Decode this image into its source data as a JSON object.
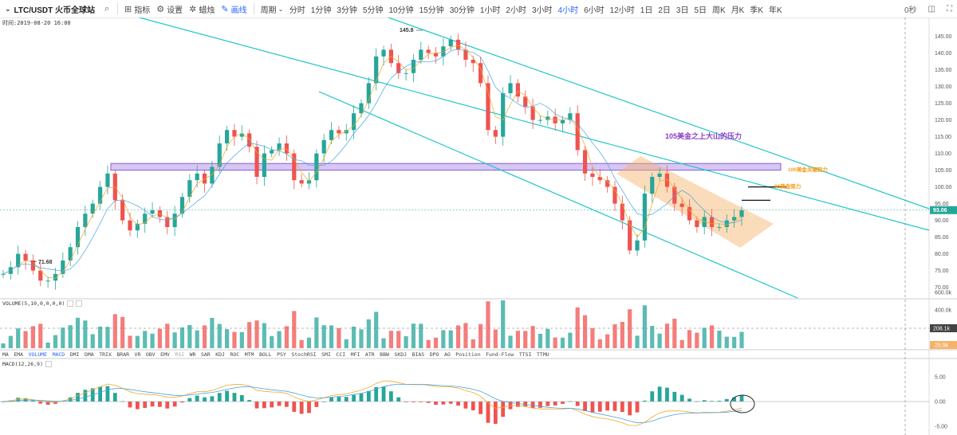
{
  "toolbar": {
    "symbol": "LTC/USDT 火币全球站",
    "indicators_label": "指标",
    "settings_label": "设置",
    "candle_label": "蜡烛",
    "draw_label": "画线",
    "period_label": "周期",
    "intervals": [
      "分时",
      "1分钟",
      "3分钟",
      "5分钟",
      "10分钟",
      "15分钟",
      "30分钟",
      "1小时",
      "2小时",
      "3小时",
      "4小时",
      "6小时",
      "12小时",
      "1日",
      "2日",
      "3日",
      "5日",
      "周K",
      "月K",
      "季K",
      "年K"
    ],
    "active_interval": "4小时",
    "right_zoom": "0秒"
  },
  "time_info": "时间:2019-08-20 16:00",
  "annotations": {
    "resistance_105": "105美金之上大山的压力",
    "resistance_100": "100美金关键阻力",
    "resistance_96": "96美金阻力",
    "high_label": "145.8",
    "low_label": "71.68"
  },
  "price_axis": {
    "ticks": [
      "145.00",
      "140.00",
      "135.00",
      "130.00",
      "125.00",
      "120.00",
      "115.00",
      "110.00",
      "105.00",
      "100.00",
      "95.00",
      "90.00",
      "85.00",
      "80.00",
      "75.00",
      "70.00"
    ],
    "current_price": "93.06"
  },
  "volume": {
    "label": "VOLUME(5,10,0,0,0,0)",
    "ticks": [
      "600.0k",
      "400.0k"
    ],
    "current": "208.1k",
    "secondary": "25.9k"
  },
  "indicator_list": [
    "MA",
    "EMA",
    "VOLUME",
    "MACD",
    "DMI",
    "DMA",
    "TRIX",
    "BRAR",
    "VR",
    "OBV",
    "EMV",
    "RSI",
    "WR",
    "SAR",
    "KDJ",
    "ROC",
    "MTM",
    "BOLL",
    "PSY",
    "StochRSI",
    "SMI",
    "CCI",
    "MFI",
    "ATR",
    "BBW",
    "SKDJ",
    "BIAS",
    "DPO",
    "AO",
    "Position",
    "Fund-Flow",
    "TTSI",
    "TTMU"
  ],
  "indicator_active": [
    "VOLUME",
    "MACD"
  ],
  "indicator_dim": [
    "RSI"
  ],
  "macd": {
    "label": "MACD(12,26,9)",
    "ticks": [
      "5.00",
      "0.00",
      "-5.00"
    ]
  },
  "colors": {
    "up": "#26a69a",
    "down": "#ef5350",
    "channel": "#1fc6c6",
    "zone_fill": "#c8b4f0",
    "zone_stroke": "#8a5cd6",
    "orange": "#f7b267",
    "annotation_purple": "#8a3ec8",
    "annotation_orange": "#f39c12"
  },
  "chart_data": {
    "type": "candlestick",
    "title": "LTC/USDT 火币全球站",
    "interval": "4小时",
    "ylim": [
      68,
      148
    ],
    "high": 145.8,
    "low": 71.68,
    "last": 93.06,
    "closes": [
      74,
      76,
      80,
      78,
      75,
      72,
      72,
      74,
      78,
      82,
      88,
      92,
      95,
      100,
      104,
      96,
      90,
      87,
      89,
      92,
      93,
      91,
      88,
      92,
      97,
      102,
      104,
      101,
      106,
      113,
      117,
      115,
      116,
      112,
      103,
      110,
      111,
      113,
      110,
      102,
      101,
      102,
      110,
      114,
      117,
      116,
      117,
      122,
      125,
      131,
      139,
      141,
      137,
      134,
      134,
      138,
      141,
      140,
      139,
      142,
      144,
      141,
      138,
      137,
      131,
      117,
      115,
      128,
      131,
      127,
      124,
      120,
      120,
      121,
      119,
      120,
      122,
      111,
      104,
      103,
      102,
      100,
      95,
      90,
      81,
      84,
      98,
      103,
      104,
      100,
      95,
      94,
      90,
      88,
      91,
      88,
      88,
      90,
      91,
      93
    ],
    "resistance_zone": [
      105,
      107
    ],
    "levels": [
      {
        "price": 100,
        "label": "100美金关键阻力"
      },
      {
        "price": 96,
        "label": "96美金阻力"
      }
    ]
  }
}
